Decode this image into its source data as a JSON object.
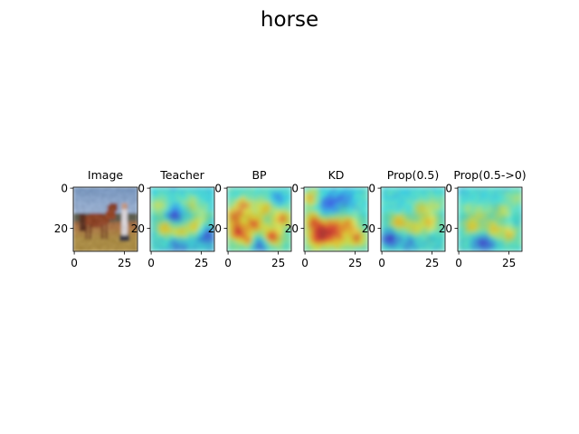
{
  "figure": {
    "title": "horse"
  },
  "chart_data": {
    "type": "heatmap",
    "title": "horse",
    "image_size": [
      32,
      32
    ],
    "x_ticks": [
      0,
      25
    ],
    "y_ticks": [
      0,
      20
    ],
    "xlim": [
      -0.5,
      31.5
    ],
    "ylim": [
      31.5,
      -0.5
    ],
    "colormap": "jet",
    "panels": [
      {
        "title": "Image",
        "kind": "photo",
        "x_ticks": [
          "0",
          "25"
        ],
        "y_ticks": [
          "0",
          "20"
        ]
      },
      {
        "title": "Teacher",
        "kind": "saliency",
        "x_ticks": [
          "0",
          "25"
        ],
        "y_ticks": [
          "0",
          "20"
        ]
      },
      {
        "title": "BP",
        "kind": "saliency",
        "x_ticks": [
          "0",
          "25"
        ],
        "y_ticks": [
          "0",
          "20"
        ]
      },
      {
        "title": "KD",
        "kind": "saliency",
        "x_ticks": [
          "0",
          "25"
        ],
        "y_ticks": [
          "0",
          "20"
        ]
      },
      {
        "title": "Prop(0.5)",
        "kind": "saliency",
        "x_ticks": [
          "0",
          "25"
        ],
        "y_ticks": [
          "0",
          "20"
        ]
      },
      {
        "title": "Prop(0.5->0)",
        "kind": "saliency",
        "x_ticks": [
          "0",
          "25"
        ],
        "y_ticks": [
          "0",
          "20"
        ]
      }
    ]
  }
}
